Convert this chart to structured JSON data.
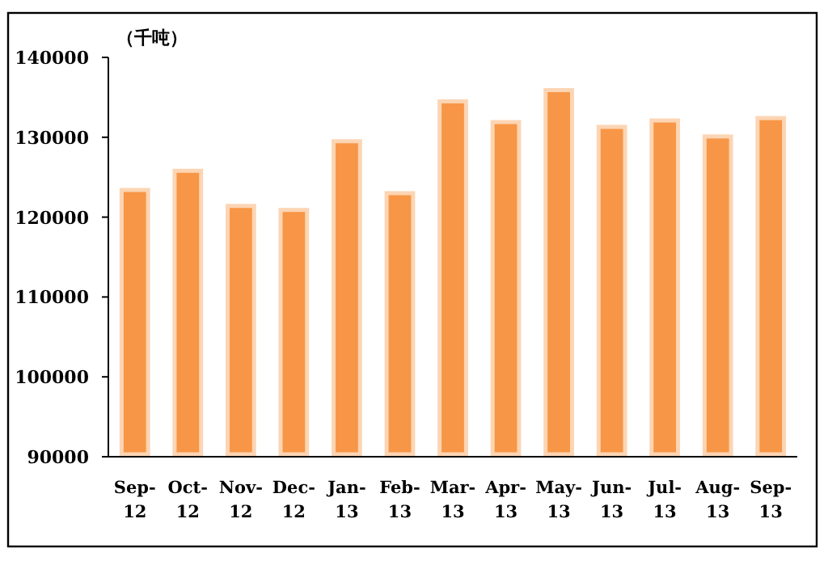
{
  "chart_data": {
    "type": "bar",
    "ylabel": "（千吨）",
    "categories": [
      "Sep-12",
      "Oct-12",
      "Nov-12",
      "Dec-12",
      "Jan-13",
      "Feb-13",
      "Mar-13",
      "Apr-13",
      "May-13",
      "Jun-13",
      "Jul-13",
      "Aug-13",
      "Sep-13"
    ],
    "values": [
      123400,
      125800,
      121400,
      120900,
      129500,
      123000,
      134500,
      131900,
      135900,
      131300,
      132100,
      130100,
      132400
    ],
    "color": "#f79646",
    "ylim": [
      90000,
      140000
    ],
    "yticks": [
      90000,
      100000,
      110000,
      120000,
      130000,
      140000
    ],
    "grid": false
  }
}
